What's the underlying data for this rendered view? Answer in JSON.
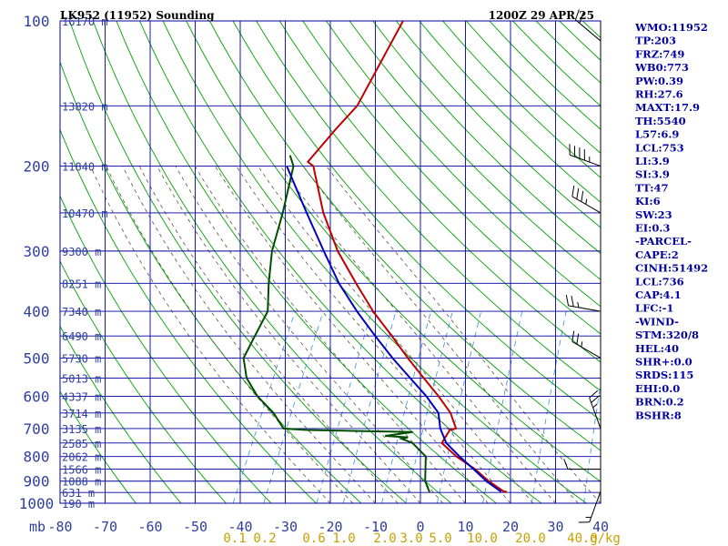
{
  "header": {
    "title": "LK952 (11952) Sounding",
    "time": "1200Z 29 APR 25"
  },
  "colors": {
    "axis": "#2f3f9e",
    "grid": "#0000a0",
    "dry_adiabat": "#00a000",
    "moist_adiabat": "#605040",
    "mixing_ratio": "#3090e0",
    "temperature": "#c00000",
    "dewpoint": "#004d00",
    "parcel": "#0000c0",
    "text": "#0000a0",
    "mixing_label": "#c8a000"
  },
  "chart_data": {
    "type": "line",
    "title": "LK952 (11952) Sounding",
    "subtitle": "1200Z 29 APR 25",
    "x_unit": "°C",
    "y_unit": "mb",
    "xlim": [
      -80,
      40
    ],
    "ylim": [
      1000,
      100
    ],
    "x_ticks": [
      -80,
      -70,
      -60,
      -50,
      -40,
      -30,
      -20,
      -10,
      0,
      10,
      20,
      30,
      40
    ],
    "y_ticks": [
      100,
      200,
      300,
      400,
      500,
      600,
      700,
      800,
      900,
      1000
    ],
    "pressure_grid": [
      100,
      150,
      200,
      250,
      300,
      350,
      400,
      450,
      500,
      550,
      600,
      650,
      700,
      750,
      800,
      850,
      900,
      950,
      1000
    ],
    "height_labels": [
      {
        "p": 100,
        "label": "16170 m"
      },
      {
        "p": 150,
        "label": "13820 m"
      },
      {
        "p": 200,
        "label": "11840 m"
      },
      {
        "p": 250,
        "label": "10470 m"
      },
      {
        "p": 300,
        "label": "9300 m"
      },
      {
        "p": 350,
        "label": "8251 m"
      },
      {
        "p": 400,
        "label": "7340 m"
      },
      {
        "p": 450,
        "label": "6490 m"
      },
      {
        "p": 500,
        "label": "5730 m"
      },
      {
        "p": 550,
        "label": "5013 m"
      },
      {
        "p": 600,
        "label": "4337 m"
      },
      {
        "p": 650,
        "label": "3714 m"
      },
      {
        "p": 700,
        "label": "3135 m"
      },
      {
        "p": 750,
        "label": "2585 m"
      },
      {
        "p": 800,
        "label": "2062 m"
      },
      {
        "p": 850,
        "label": "1566 m"
      },
      {
        "p": 900,
        "label": "1088 m"
      },
      {
        "p": 950,
        "label": "631 m"
      },
      {
        "p": 1000,
        "label": "190 m"
      }
    ],
    "mixing_ratio_labels": [
      "0.1",
      "0.2",
      "0.6",
      "1.0",
      "2.0",
      "3.0",
      "5.0",
      "10.0",
      "20.0",
      "40.0"
    ],
    "mixing_ratio_unit": "g/kg",
    "series": [
      {
        "key": "temperature",
        "points": [
          [
            100,
            -59.4
          ],
          [
            150,
            -59.8
          ],
          [
            167,
            -61.8
          ],
          [
            196,
            -64.3
          ],
          [
            200,
            -62.6
          ],
          [
            250,
            -55
          ],
          [
            300,
            -47.4
          ],
          [
            350,
            -39.6
          ],
          [
            400,
            -32.6
          ],
          [
            450,
            -25.6
          ],
          [
            500,
            -19.5
          ],
          [
            550,
            -13.7
          ],
          [
            600,
            -8.3
          ],
          [
            650,
            -3.7
          ],
          [
            700,
            -0.7
          ],
          [
            705,
            -1.9
          ],
          [
            750,
            -2.2
          ],
          [
            800,
            2.6
          ],
          [
            850,
            8.2
          ],
          [
            900,
            12.6
          ],
          [
            945,
            17.1
          ],
          [
            947,
            17.9
          ]
        ]
      },
      {
        "key": "dewpoint",
        "points": [
          [
            190,
            -69
          ],
          [
            200,
            -67
          ],
          [
            250,
            -64
          ],
          [
            300,
            -62
          ],
          [
            350,
            -59
          ],
          [
            400,
            -56
          ],
          [
            450,
            -56
          ],
          [
            500,
            -56
          ],
          [
            550,
            -53
          ],
          [
            600,
            -48.5
          ],
          [
            650,
            -43
          ],
          [
            700,
            -39
          ],
          [
            705,
            -33.8
          ],
          [
            710,
            -15.4
          ],
          [
            712,
            -9.9
          ],
          [
            725,
            -15.6
          ],
          [
            730,
            -10.4
          ],
          [
            735,
            -11.6
          ],
          [
            750,
            -8.7
          ],
          [
            800,
            -4.2
          ],
          [
            900,
            -1.5
          ],
          [
            930,
            -0.1
          ],
          [
            950,
            0.8
          ]
        ]
      },
      {
        "key": "parcel",
        "points": [
          [
            200,
            -68.5
          ],
          [
            250,
            -58.7
          ],
          [
            300,
            -50.5
          ],
          [
            350,
            -43.4
          ],
          [
            400,
            -36.2
          ],
          [
            450,
            -29.3
          ],
          [
            500,
            -22.9
          ],
          [
            550,
            -16.7
          ],
          [
            600,
            -11
          ],
          [
            650,
            -6.4
          ],
          [
            700,
            -4.2
          ],
          [
            750,
            -1.2
          ],
          [
            800,
            3.3
          ],
          [
            850,
            7.9
          ],
          [
            900,
            12.1
          ],
          [
            947,
            16.6
          ]
        ]
      }
    ],
    "wind_barbs": [
      {
        "p": 110,
        "dir": 310,
        "spd": 20
      },
      {
        "p": 200,
        "dir": 290,
        "spd": 35
      },
      {
        "p": 250,
        "dir": 300,
        "spd": 25
      },
      {
        "p": 400,
        "dir": 280,
        "spd": 15
      },
      {
        "p": 500,
        "dir": 300,
        "spd": 15
      },
      {
        "p": 700,
        "dir": 340,
        "spd": 15
      },
      {
        "p": 850,
        "dir": 270,
        "spd": 10
      },
      {
        "p": 945,
        "dir": 200,
        "spd": 5
      }
    ]
  },
  "indices": [
    "WMO:11952",
    "TP:203",
    "FRZ:749",
    "WB0:773",
    "PW:0.39",
    "RH:27.6",
    "MAXT:17.9",
    "TH:5540",
    "L57:6.9",
    "LCL:753",
    "LI:3.9",
    "SI:3.9",
    "TT:47",
    "KI:6",
    "SW:23",
    "EI:0.3",
    "-PARCEL-",
    "CAPE:2",
    "CINH:51492",
    "LCL:736",
    "CAP:4.1",
    "LFC:-1",
    "-WIND-",
    "STM:320/8",
    "HEL:40",
    "SHR+:0.0",
    "SRDS:115",
    "EHI:0.0",
    "BRN:0.2",
    "BSHR:8"
  ]
}
